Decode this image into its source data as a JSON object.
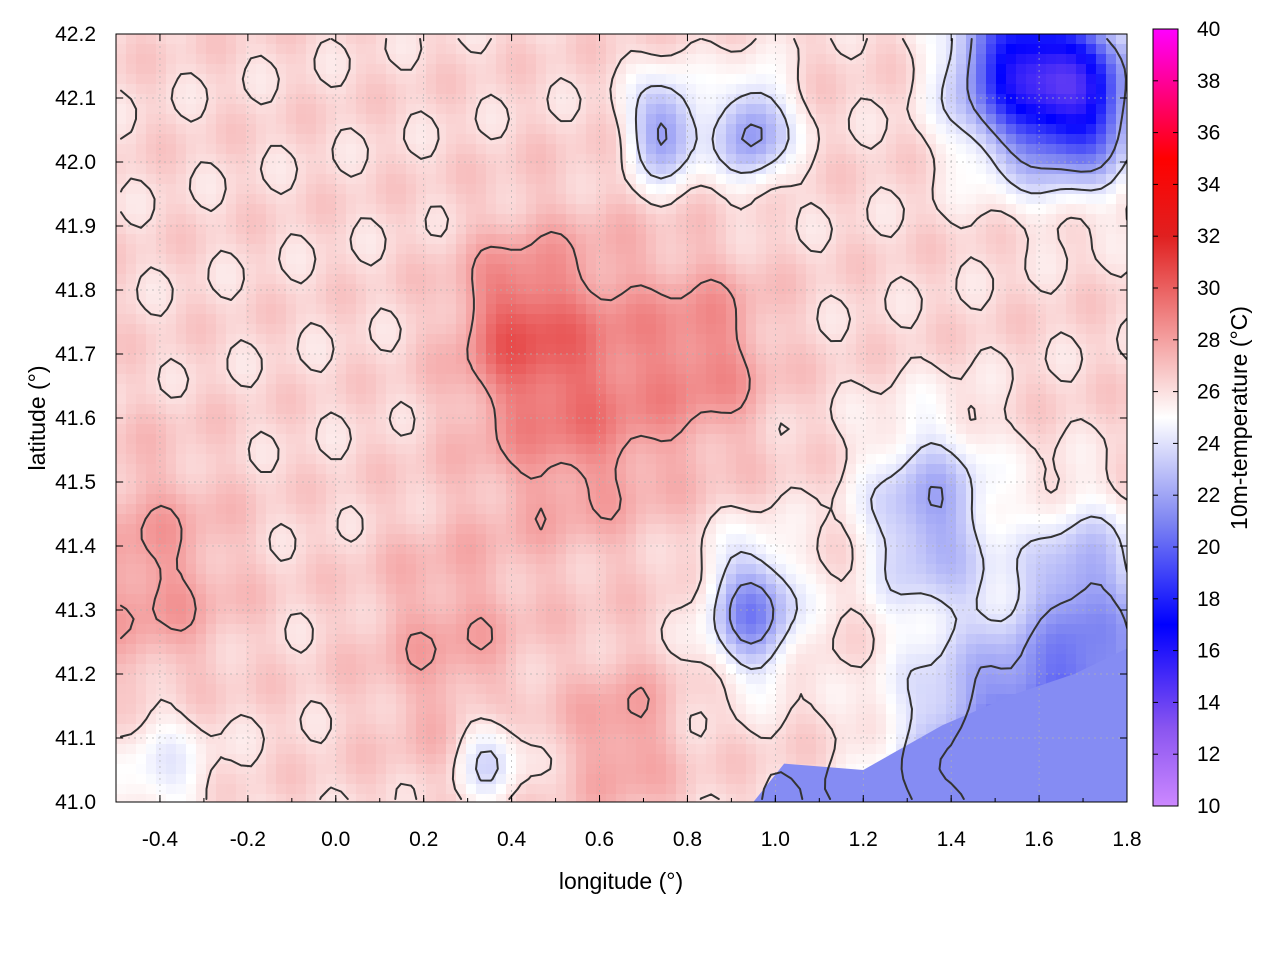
{
  "chart_data": {
    "type": "heatmap",
    "xlabel": "longitude (°)",
    "ylabel": "latitude (°)",
    "colorbar_label": "10m-temperature (°C)",
    "xlim": [
      -0.5,
      1.8
    ],
    "ylim": [
      41.0,
      42.2
    ],
    "x_ticks": [
      "-0.4",
      "-0.2",
      "0.0",
      "0.2",
      "0.4",
      "0.6",
      "0.8",
      "1.0",
      "1.2",
      "1.4",
      "1.6",
      "1.8"
    ],
    "y_ticks": [
      "41.0",
      "41.1",
      "41.2",
      "41.3",
      "41.4",
      "41.5",
      "41.6",
      "41.7",
      "41.8",
      "41.9",
      "42.0",
      "42.1",
      "42.2"
    ],
    "colorbar_range": [
      10,
      40
    ],
    "colorbar_ticks": [
      "10",
      "12",
      "14",
      "16",
      "18",
      "20",
      "22",
      "24",
      "26",
      "28",
      "30",
      "32",
      "34",
      "36",
      "38",
      "40"
    ],
    "colormap": [
      {
        "value": 10,
        "color": "#cc88ff"
      },
      {
        "value": 13,
        "color": "#8a55f0"
      },
      {
        "value": 17,
        "color": "#0000ff"
      },
      {
        "value": 21,
        "color": "#7f86f2"
      },
      {
        "value": 25,
        "color": "#ffffff"
      },
      {
        "value": 28,
        "color": "#f4a0a0"
      },
      {
        "value": 32,
        "color": "#e02020"
      },
      {
        "value": 35,
        "color": "#ff0000"
      },
      {
        "value": 40,
        "color": "#ff00ff"
      }
    ],
    "grid": true,
    "contour_color": "#333333",
    "hotspots": [
      {
        "lon": 0.55,
        "lat": 41.65,
        "temp": 29.3,
        "spread": 0.22
      },
      {
        "lon": 0.4,
        "lat": 41.75,
        "temp": 28.6,
        "spread": 0.12
      },
      {
        "lon": 0.85,
        "lat": 41.7,
        "temp": 28.4,
        "spread": 0.14
      },
      {
        "lon": -0.42,
        "lat": 41.35,
        "temp": 28.2,
        "spread": 0.18
      },
      {
        "lon": 0.25,
        "lat": 41.25,
        "temp": 27.8,
        "spread": 0.18
      },
      {
        "lon": 0.65,
        "lat": 41.1,
        "temp": 28.2,
        "spread": 0.12
      },
      {
        "lon": 1.55,
        "lat": 42.15,
        "temp": 17.5,
        "spread": 0.14
      },
      {
        "lon": 1.7,
        "lat": 42.1,
        "temp": 18.0,
        "spread": 0.12
      },
      {
        "lon": 0.95,
        "lat": 41.3,
        "temp": 21.0,
        "spread": 0.1
      },
      {
        "lon": 0.75,
        "lat": 42.05,
        "temp": 21.5,
        "spread": 0.08
      },
      {
        "lon": 0.95,
        "lat": 42.05,
        "temp": 21.5,
        "spread": 0.08
      },
      {
        "lon": 1.35,
        "lat": 41.45,
        "temp": 22.2,
        "spread": 0.14
      },
      {
        "lon": 1.7,
        "lat": 41.35,
        "temp": 23.2,
        "spread": 0.12
      },
      {
        "lon": 1.5,
        "lat": 41.05,
        "temp": 21.0,
        "spread": 0.22
      },
      {
        "lon": 1.75,
        "lat": 41.1,
        "temp": 20.8,
        "spread": 0.2
      },
      {
        "lon": 0.35,
        "lat": 41.07,
        "temp": 23.5,
        "spread": 0.07
      },
      {
        "lon": -0.4,
        "lat": 41.05,
        "temp": 24.5,
        "spread": 0.12
      }
    ],
    "base_temp": 26.3
  }
}
